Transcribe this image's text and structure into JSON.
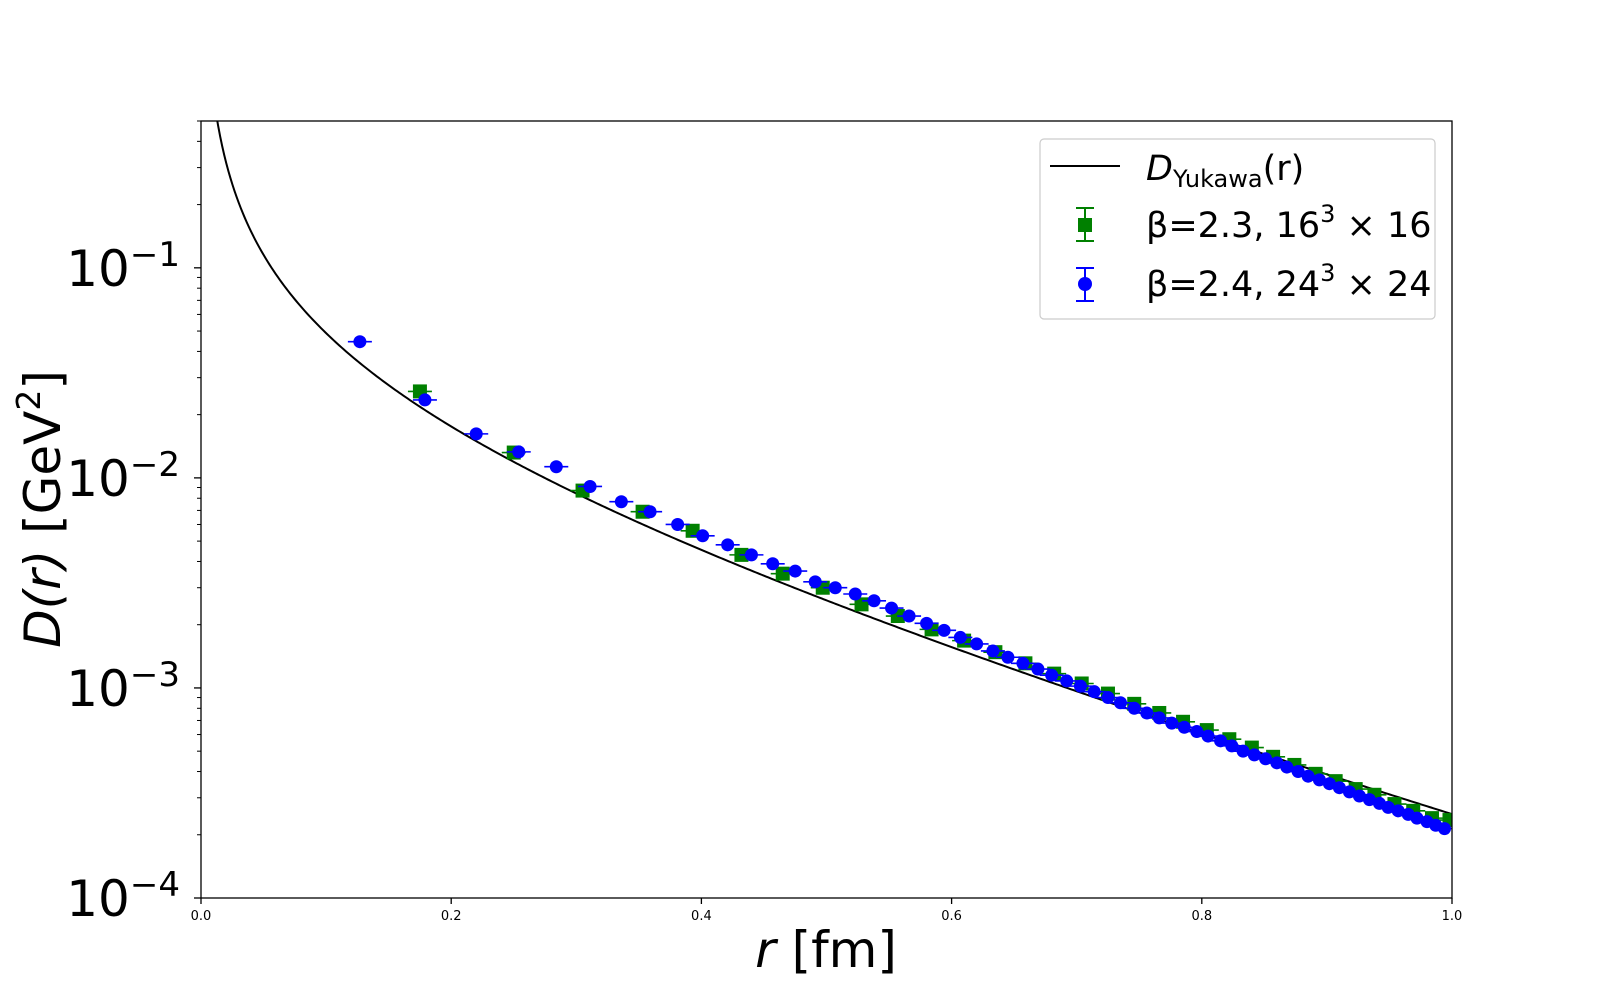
{
  "chart_data": {
    "type": "scatter",
    "xlabel_var": "r",
    "xlabel_unit": " [fm]",
    "ylabel_var": "D(r)",
    "ylabel_unit_pre": " [GeV",
    "ylabel_unit_sup": "2",
    "ylabel_unit_post": "]",
    "xlim": [
      0.0,
      1.0
    ],
    "ylim": [
      0.0001,
      0.5
    ],
    "yscale": "log",
    "grid": false,
    "legend_position": "top-right",
    "x_ticks": [
      "0.0",
      "0.2",
      "0.4",
      "0.6",
      "0.8",
      "1.0"
    ],
    "y_ticks": [
      {
        "value": 0.1,
        "base": "10",
        "exp": "−1"
      },
      {
        "value": 0.01,
        "base": "10",
        "exp": "−2"
      },
      {
        "value": 0.001,
        "base": "10",
        "exp": "−3"
      },
      {
        "value": 0.0001,
        "base": "10",
        "exp": "−4"
      }
    ],
    "curve": {
      "legend_main": "D",
      "legend_sub": "Yukawa",
      "legend_tail": "(r)",
      "color": "#000000",
      "amplitude": 0.0068,
      "mass_per_fm": 3.3
    },
    "series": [
      {
        "legend_pre": "β=2.3, 16",
        "legend_sup": "3",
        "legend_post": " × 16",
        "marker": "square",
        "color": "#008000",
        "points": [
          [
            0.175,
            0.0258
          ],
          [
            0.25,
            0.0132
          ],
          [
            0.305,
            0.0087
          ],
          [
            0.353,
            0.0069
          ],
          [
            0.393,
            0.0056
          ],
          [
            0.432,
            0.0043
          ],
          [
            0.465,
            0.0035
          ],
          [
            0.497,
            0.003
          ],
          [
            0.528,
            0.0025
          ],
          [
            0.557,
            0.0022
          ],
          [
            0.584,
            0.0019
          ],
          [
            0.61,
            0.00168
          ],
          [
            0.635,
            0.00148
          ],
          [
            0.659,
            0.00131
          ],
          [
            0.682,
            0.00117
          ],
          [
            0.704,
            0.00105
          ],
          [
            0.725,
            0.00094
          ],
          [
            0.746,
            0.00084
          ],
          [
            0.766,
            0.00076
          ],
          [
            0.785,
            0.00069
          ],
          [
            0.804,
            0.00063
          ],
          [
            0.822,
            0.00057
          ],
          [
            0.84,
            0.00052
          ],
          [
            0.857,
            0.00047
          ],
          [
            0.874,
            0.00043
          ],
          [
            0.891,
            0.00039
          ],
          [
            0.907,
            0.00036
          ],
          [
            0.923,
            0.00033
          ],
          [
            0.938,
            0.00031
          ],
          [
            0.954,
            0.00028
          ],
          [
            0.969,
            0.00026
          ],
          [
            0.984,
            0.00024
          ],
          [
            0.998,
            0.000235
          ]
        ]
      },
      {
        "legend_pre": "β=2.4, 24",
        "legend_sup": "3",
        "legend_post": " × 24",
        "marker": "circle",
        "color": "#0000ff",
        "points": [
          [
            0.127,
            0.0445
          ],
          [
            0.179,
            0.0235
          ],
          [
            0.22,
            0.0162
          ],
          [
            0.254,
            0.0133
          ],
          [
            0.284,
            0.0113
          ],
          [
            0.311,
            0.0091
          ],
          [
            0.336,
            0.0077
          ],
          [
            0.359,
            0.0069
          ],
          [
            0.381,
            0.006
          ],
          [
            0.401,
            0.0053
          ],
          [
            0.421,
            0.0048
          ],
          [
            0.44,
            0.0043
          ],
          [
            0.457,
            0.0039
          ],
          [
            0.475,
            0.0036
          ],
          [
            0.491,
            0.0032
          ],
          [
            0.507,
            0.003
          ],
          [
            0.523,
            0.0028
          ],
          [
            0.538,
            0.0026
          ],
          [
            0.552,
            0.0024
          ],
          [
            0.566,
            0.0022
          ],
          [
            0.58,
            0.00203
          ],
          [
            0.594,
            0.00188
          ],
          [
            0.607,
            0.00174
          ],
          [
            0.62,
            0.00162
          ],
          [
            0.633,
            0.0015
          ],
          [
            0.645,
            0.0014
          ],
          [
            0.657,
            0.00131
          ],
          [
            0.669,
            0.00123
          ],
          [
            0.68,
            0.00115
          ],
          [
            0.692,
            0.00108
          ],
          [
            0.703,
            0.00102
          ],
          [
            0.714,
            0.00096
          ],
          [
            0.725,
            0.0009
          ],
          [
            0.735,
            0.00085
          ],
          [
            0.746,
            0.0008
          ],
          [
            0.756,
            0.00076
          ],
          [
            0.766,
            0.00072
          ],
          [
            0.776,
            0.00068
          ],
          [
            0.786,
            0.00065
          ],
          [
            0.796,
            0.00062
          ],
          [
            0.805,
            0.00059
          ],
          [
            0.815,
            0.00056
          ],
          [
            0.824,
            0.00053
          ],
          [
            0.833,
            0.0005
          ],
          [
            0.842,
            0.00048
          ],
          [
            0.851,
            0.00046
          ],
          [
            0.86,
            0.00044
          ],
          [
            0.868,
            0.00042
          ],
          [
            0.877,
            0.0004
          ],
          [
            0.885,
            0.00038
          ],
          [
            0.894,
            0.000365
          ],
          [
            0.902,
            0.00035
          ],
          [
            0.91,
            0.000335
          ],
          [
            0.918,
            0.00032
          ],
          [
            0.926,
            0.000306
          ],
          [
            0.934,
            0.000294
          ],
          [
            0.942,
            0.000282
          ],
          [
            0.949,
            0.00027
          ],
          [
            0.957,
            0.00026
          ],
          [
            0.965,
            0.00025
          ],
          [
            0.972,
            0.00024
          ],
          [
            0.98,
            0.000231
          ],
          [
            0.987,
            0.000222
          ],
          [
            0.994,
            0.000214
          ]
        ]
      }
    ]
  }
}
